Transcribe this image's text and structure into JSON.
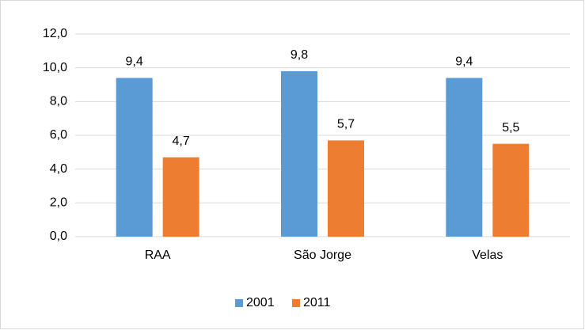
{
  "chart_data": {
    "type": "bar",
    "categories": [
      "RAA",
      "São Jorge",
      "Velas"
    ],
    "series": [
      {
        "name": "2001",
        "color": "#5b9bd5",
        "values": [
          9.4,
          9.8,
          9.4
        ],
        "value_labels": [
          "9,4",
          "9,8",
          "9,4"
        ]
      },
      {
        "name": "2011",
        "color": "#ed7d31",
        "values": [
          4.7,
          5.7,
          5.5
        ],
        "value_labels": [
          "4,7",
          "5,7",
          "5,5"
        ]
      }
    ],
    "ylim": [
      0,
      12
    ],
    "yticks": [
      {
        "value": 0,
        "label": "0,0"
      },
      {
        "value": 2,
        "label": "2,0"
      },
      {
        "value": 4,
        "label": "4,0"
      },
      {
        "value": 6,
        "label": "6,0"
      },
      {
        "value": 8,
        "label": "8,0"
      },
      {
        "value": 10,
        "label": "10,0"
      },
      {
        "value": 12,
        "label": "12,0"
      }
    ],
    "grid": true,
    "legend": "bottom"
  }
}
